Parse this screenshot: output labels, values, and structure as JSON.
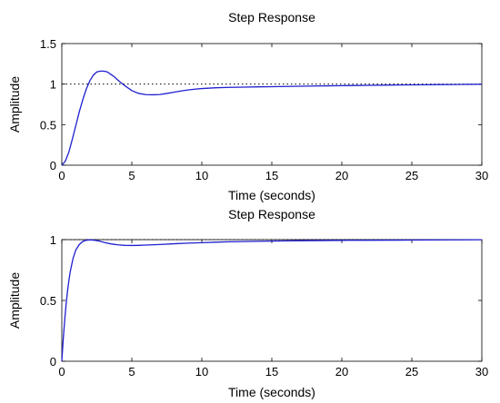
{
  "chart_data": [
    {
      "type": "line",
      "title": "Step Response",
      "xlabel": "Time (seconds)",
      "ylabel": "Amplitude",
      "xlim": [
        0,
        30
      ],
      "ylim": [
        0,
        1.5
      ],
      "xticks": [
        0,
        5,
        10,
        15,
        20,
        25,
        30
      ],
      "xtick_labels": [
        "0",
        "5",
        "10",
        "15",
        "20",
        "25",
        "30"
      ],
      "yticks": [
        0,
        0.5,
        1,
        1.5
      ],
      "ytick_labels": [
        "0",
        "0.5",
        "1",
        "1.5"
      ],
      "grid": false,
      "reference_line": {
        "y": 1,
        "style": "dotted",
        "color": "#000000"
      },
      "series": [
        {
          "color": "#1f1fd0",
          "x": [
            0,
            0.25,
            0.5,
            0.75,
            1,
            1.25,
            1.5,
            1.75,
            2,
            2.25,
            2.5,
            2.75,
            3,
            3.25,
            3.5,
            3.75,
            4,
            4.5,
            5,
            5.5,
            6,
            6.5,
            7,
            7.5,
            8,
            8.5,
            9,
            9.5,
            10,
            11,
            12,
            13,
            14,
            15,
            16,
            17,
            18,
            19,
            20,
            21,
            22,
            23,
            24,
            25,
            26,
            27,
            28,
            29,
            30
          ],
          "y": [
            0,
            0.05,
            0.16,
            0.32,
            0.49,
            0.66,
            0.81,
            0.94,
            1.04,
            1.11,
            1.15,
            1.16,
            1.16,
            1.15,
            1.12,
            1.09,
            1.05,
            0.98,
            0.92,
            0.885,
            0.87,
            0.868,
            0.872,
            0.885,
            0.9,
            0.915,
            0.928,
            0.938,
            0.945,
            0.955,
            0.96,
            0.963,
            0.966,
            0.968,
            0.971,
            0.974,
            0.977,
            0.979,
            0.981,
            0.983,
            0.985,
            0.987,
            0.989,
            0.991,
            0.992,
            0.994,
            0.995,
            0.997,
            0.998
          ]
        }
      ]
    },
    {
      "type": "line",
      "title": "Step Response",
      "xlabel": "Time (seconds)",
      "ylabel": "Amplitude",
      "xlim": [
        0,
        30
      ],
      "ylim": [
        0,
        1
      ],
      "xticks": [
        0,
        5,
        10,
        15,
        20,
        25,
        30
      ],
      "xtick_labels": [
        "0",
        "5",
        "10",
        "15",
        "20",
        "25",
        "30"
      ],
      "yticks": [
        0,
        0.5,
        1
      ],
      "ytick_labels": [
        "0",
        "0.5",
        "1"
      ],
      "grid": false,
      "reference_line": {
        "y": 1,
        "style": "dotted",
        "color": "#000000"
      },
      "series": [
        {
          "color": "#1f1fd0",
          "x": [
            0,
            0.1,
            0.2,
            0.3,
            0.4,
            0.5,
            0.6,
            0.8,
            1,
            1.25,
            1.5,
            1.75,
            2,
            2.25,
            2.5,
            2.75,
            3,
            3.5,
            4,
            4.5,
            5,
            5.5,
            6,
            7,
            8,
            9,
            10,
            11,
            12,
            13,
            14,
            15,
            16,
            17,
            18,
            19,
            20,
            22,
            24,
            26,
            28,
            30
          ],
          "y": [
            0,
            0.18,
            0.33,
            0.46,
            0.57,
            0.66,
            0.735,
            0.845,
            0.915,
            0.96,
            0.985,
            0.995,
            0.998,
            0.996,
            0.992,
            0.986,
            0.978,
            0.965,
            0.957,
            0.953,
            0.952,
            0.953,
            0.955,
            0.96,
            0.966,
            0.971,
            0.975,
            0.979,
            0.982,
            0.984,
            0.986,
            0.988,
            0.99,
            0.991,
            0.992,
            0.993,
            0.994,
            0.995,
            0.996,
            0.997,
            0.998,
            0.999
          ]
        }
      ]
    }
  ]
}
